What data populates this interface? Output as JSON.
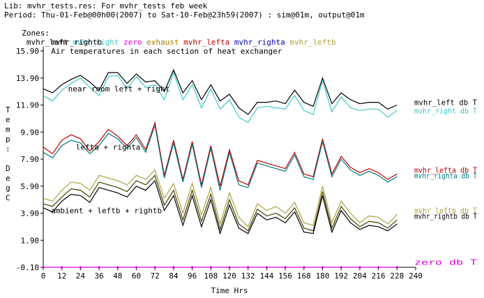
{
  "header": {
    "lib_line": "Lib: mvhr_tests.res: For mvhr_tests feb week",
    "period_line": "Period: Thu-01-Feb@00h00(2007) to Sat-10-Feb@23h59(2007) : sim@01m, output@01m",
    "zones_label": "Zones:",
    "zones": [
      {
        "name": "mvhr_left",
        "color": "#000000"
      },
      {
        "name": "mvhr_right",
        "color": "#40c8c8"
      },
      {
        "name": "zero",
        "color": "#e000e0"
      },
      {
        "name": "exhaust",
        "color": "#a08000"
      },
      {
        "name": "mvhr_lefta",
        "color": "#c00000"
      },
      {
        "name": "mvhr_righta",
        "color": "#0000c0"
      },
      {
        "name": "mvhr_leftb",
        "color": "#b0a040"
      },
      {
        "name": "mvhr_rightb",
        "color": "#000000"
      }
    ],
    "subtitle": "Air temperatures in each section of heat exchanger"
  },
  "chart_data": {
    "type": "line",
    "xlabel": "Time Hrs",
    "ylabel_chars": [
      "T",
      "e",
      "m",
      "p",
      ":",
      "",
      "D",
      "e",
      "g",
      "C"
    ],
    "xlim": [
      0,
      240
    ],
    "ylim": [
      -0.1,
      15.9
    ],
    "xticks": [
      0,
      12,
      24,
      36,
      48,
      60,
      72,
      84,
      96,
      108,
      120,
      132,
      144,
      156,
      168,
      180,
      192,
      204,
      216,
      228,
      240
    ],
    "yticks": [
      "-0.10",
      "1.90",
      "3.90",
      "5.90",
      "7.90",
      "9.90",
      "11.90",
      "13.90",
      "15.90"
    ],
    "ytick_values": [
      -0.1,
      1.9,
      3.9,
      5.9,
      7.9,
      9.9,
      11.9,
      13.9,
      15.9
    ],
    "annotations": [
      {
        "text": "near room left + right",
        "x": 16,
        "y": 12.9
      },
      {
        "text": "lefta + righta",
        "x": 21,
        "y": 8.6
      },
      {
        "text": "ambient + leftb + rightb",
        "x": 5,
        "y": 3.9
      }
    ],
    "x": [
      0,
      6,
      12,
      18,
      24,
      30,
      36,
      42,
      48,
      54,
      60,
      66,
      72,
      78,
      84,
      90,
      96,
      102,
      108,
      114,
      120,
      126,
      132,
      138,
      144,
      150,
      156,
      162,
      168,
      174,
      180,
      186,
      192,
      198,
      204,
      210,
      216,
      222,
      228
    ],
    "series": [
      {
        "name": "mvhr_left db T",
        "color": "#000000",
        "values": [
          13.1,
          12.8,
          13.4,
          13.8,
          14.1,
          13.6,
          13.0,
          14.3,
          14.3,
          13.5,
          14.2,
          13.6,
          13.7,
          12.9,
          14.5,
          12.8,
          13.7,
          12.3,
          13.4,
          12.2,
          12.7,
          11.7,
          11.2,
          12.1,
          12.1,
          12.2,
          12.0,
          13.0,
          12.1,
          11.8,
          13.9,
          12.0,
          12.8,
          12.3,
          12.0,
          12.1,
          12.1,
          11.6,
          11.9
        ]
      },
      {
        "name": "mvhr_right db T",
        "color": "#40c8c8",
        "values": [
          12.6,
          12.2,
          13.0,
          13.5,
          13.9,
          13.2,
          12.6,
          14.0,
          14.1,
          13.1,
          14.0,
          13.2,
          13.4,
          12.3,
          14.3,
          12.3,
          13.4,
          11.7,
          13.1,
          11.6,
          12.3,
          11.0,
          10.6,
          11.7,
          11.8,
          11.7,
          11.6,
          12.6,
          11.5,
          11.2,
          13.7,
          11.4,
          12.5,
          11.7,
          11.5,
          11.6,
          11.6,
          11.0,
          11.5
        ]
      },
      {
        "name": "mvhr_lefta db T",
        "color": "#c00000",
        "values": [
          8.8,
          8.3,
          9.3,
          9.7,
          9.4,
          8.5,
          9.2,
          10.1,
          9.6,
          8.9,
          9.7,
          8.6,
          10.6,
          6.7,
          9.3,
          6.4,
          9.2,
          6.0,
          8.9,
          5.9,
          8.6,
          6.3,
          6.0,
          7.8,
          7.6,
          7.4,
          7.2,
          8.4,
          6.8,
          6.6,
          9.4,
          6.8,
          8.1,
          7.3,
          6.9,
          7.2,
          6.9,
          6.4,
          6.8
        ]
      },
      {
        "name": "mvhr_righta db T",
        "color": "#007878",
        "values": [
          8.4,
          8.0,
          8.9,
          9.3,
          9.1,
          8.3,
          8.9,
          9.8,
          9.4,
          8.7,
          9.5,
          8.4,
          10.4,
          6.5,
          9.1,
          6.2,
          9.0,
          5.8,
          8.7,
          5.6,
          8.4,
          6.0,
          5.8,
          7.6,
          7.4,
          7.2,
          7.0,
          8.2,
          6.6,
          6.4,
          9.2,
          6.6,
          7.9,
          7.1,
          6.7,
          7.0,
          6.7,
          6.2,
          6.6
        ]
      },
      {
        "name": "mvhr_leftb db T",
        "color": "#b0a040",
        "values": [
          5.0,
          4.8,
          5.6,
          6.2,
          6.1,
          5.6,
          6.7,
          6.5,
          6.3,
          6.0,
          6.7,
          6.4,
          7.1,
          5.0,
          6.1,
          3.9,
          6.1,
          3.8,
          5.8,
          3.1,
          5.4,
          3.6,
          2.9,
          4.6,
          4.1,
          4.4,
          3.9,
          4.7,
          3.2,
          3.0,
          5.9,
          3.2,
          4.8,
          3.9,
          3.2,
          3.7,
          3.6,
          3.1,
          3.8
        ]
      },
      {
        "name": "mvhr_rightb db T",
        "color": "#404000",
        "values": [
          4.6,
          4.4,
          5.1,
          5.7,
          5.6,
          5.1,
          6.2,
          6.0,
          5.8,
          5.5,
          6.3,
          6.0,
          6.7,
          4.5,
          5.6,
          3.4,
          5.6,
          3.3,
          5.3,
          2.7,
          4.9,
          3.1,
          2.6,
          4.2,
          3.7,
          3.9,
          3.5,
          4.3,
          2.8,
          2.6,
          5.5,
          2.8,
          4.4,
          3.5,
          2.9,
          3.3,
          3.2,
          2.8,
          3.4
        ]
      },
      {
        "name": "ambient",
        "color": "#000000",
        "values": [
          4.3,
          4.0,
          4.8,
          5.3,
          5.2,
          4.7,
          5.8,
          5.6,
          5.4,
          5.1,
          5.9,
          5.6,
          6.3,
          4.1,
          5.2,
          3.0,
          5.2,
          2.9,
          4.9,
          2.4,
          4.5,
          2.8,
          2.4,
          3.9,
          3.4,
          3.6,
          3.2,
          4.0,
          2.5,
          2.4,
          5.2,
          2.5,
          4.1,
          3.2,
          2.7,
          3.0,
          2.9,
          2.6,
          3.1
        ]
      },
      {
        "name": "zero db T",
        "color": "#e000e0",
        "values": [
          -0.1,
          -0.1,
          -0.1,
          -0.1,
          -0.1,
          -0.1,
          -0.1,
          -0.1,
          -0.1,
          -0.1,
          -0.1,
          -0.1,
          -0.1,
          -0.1,
          -0.1,
          -0.1,
          -0.1,
          -0.1,
          -0.1,
          -0.1,
          -0.1,
          -0.1,
          -0.1,
          -0.1,
          -0.1,
          -0.1,
          -0.1,
          -0.1,
          -0.1,
          -0.1,
          -0.1,
          -0.1,
          -0.1,
          -0.1,
          -0.1,
          -0.1,
          -0.1,
          -0.1,
          -0.1
        ]
      }
    ],
    "end_labels": [
      {
        "text": "mvhr_left db T",
        "y": 12.1,
        "color": "#000000"
      },
      {
        "text": "mvhr_right db T",
        "y": 11.5,
        "color": "#40c8c8"
      },
      {
        "text": "mvhr_lefta db T",
        "y": 7.1,
        "color": "#c00000"
      },
      {
        "text": "mvhr_righta db T",
        "y": 6.7,
        "color": "#007878"
      },
      {
        "text": "mvhr_leftb db T",
        "y": 4.1,
        "color": "#b0a040"
      },
      {
        "text": "mvhr_rightb db T",
        "y": 3.7,
        "color": "#000000"
      },
      {
        "text": "zero db T",
        "y": 0.3,
        "color": "#e000e0"
      }
    ],
    "grid": false,
    "legend": "end-of-line labels at right"
  }
}
